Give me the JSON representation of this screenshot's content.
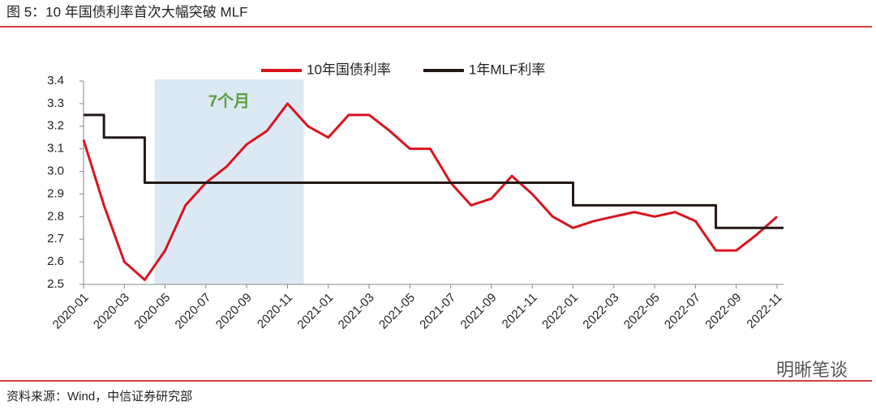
{
  "chart_data": {
    "type": "line",
    "title": "图 5：10 年国债利率首次大幅突破 MLF",
    "source": "资料来源：Wind，中信证券研究部",
    "watermark": "明晰笔谈",
    "x": [
      "2020-01",
      "2020-02",
      "2020-03",
      "2020-04",
      "2020-05",
      "2020-06",
      "2020-07",
      "2020-08",
      "2020-09",
      "2020-10",
      "2020-11",
      "2020-12",
      "2021-01",
      "2021-02",
      "2021-03",
      "2021-04",
      "2021-05",
      "2021-06",
      "2021-07",
      "2021-08",
      "2021-09",
      "2021-10",
      "2021-11",
      "2021-12",
      "2022-01",
      "2022-02",
      "2022-03",
      "2022-04",
      "2022-05",
      "2022-06",
      "2022-07",
      "2022-08",
      "2022-09",
      "2022-10",
      "2022-11"
    ],
    "xticks": [
      "2020-01",
      "2020-03",
      "2020-05",
      "2020-07",
      "2020-09",
      "2020-11",
      "2021-01",
      "2021-03",
      "2021-05",
      "2021-07",
      "2021-09",
      "2021-11",
      "2022-01",
      "2022-03",
      "2022-05",
      "2022-07",
      "2022-09",
      "2022-11"
    ],
    "series": [
      {
        "name": "10年国债利率",
        "color": "#d9141e",
        "step": false,
        "values": [
          3.14,
          2.85,
          2.6,
          2.52,
          2.65,
          2.85,
          2.95,
          3.02,
          3.12,
          3.18,
          3.3,
          3.2,
          3.15,
          3.25,
          3.25,
          3.18,
          3.1,
          3.1,
          2.95,
          2.85,
          2.88,
          2.98,
          2.9,
          2.8,
          2.75,
          2.78,
          2.8,
          2.82,
          2.8,
          2.82,
          2.78,
          2.65,
          2.65,
          2.72,
          2.8
        ]
      },
      {
        "name": "1年MLF利率",
        "color": "#231815",
        "step": true,
        "values": [
          3.25,
          3.15,
          3.15,
          2.95,
          2.95,
          2.95,
          2.95,
          2.95,
          2.95,
          2.95,
          2.95,
          2.95,
          2.95,
          2.95,
          2.95,
          2.95,
          2.95,
          2.95,
          2.95,
          2.95,
          2.95,
          2.95,
          2.95,
          2.95,
          2.85,
          2.85,
          2.85,
          2.85,
          2.85,
          2.85,
          2.85,
          2.75,
          2.75,
          2.75,
          2.75
        ]
      }
    ],
    "shade": {
      "from": "2020-04",
      "to": "2020-11",
      "label": "7个月",
      "color": "#dce8f3",
      "label_color": "#5aa03c"
    },
    "ylim": [
      2.5,
      3.4
    ],
    "yticks": [
      2.5,
      2.6,
      2.7,
      2.8,
      2.9,
      {
        "value": 3,
        "label": "3.0"
      },
      3.1,
      3.2,
      3.3,
      3.4
    ]
  }
}
